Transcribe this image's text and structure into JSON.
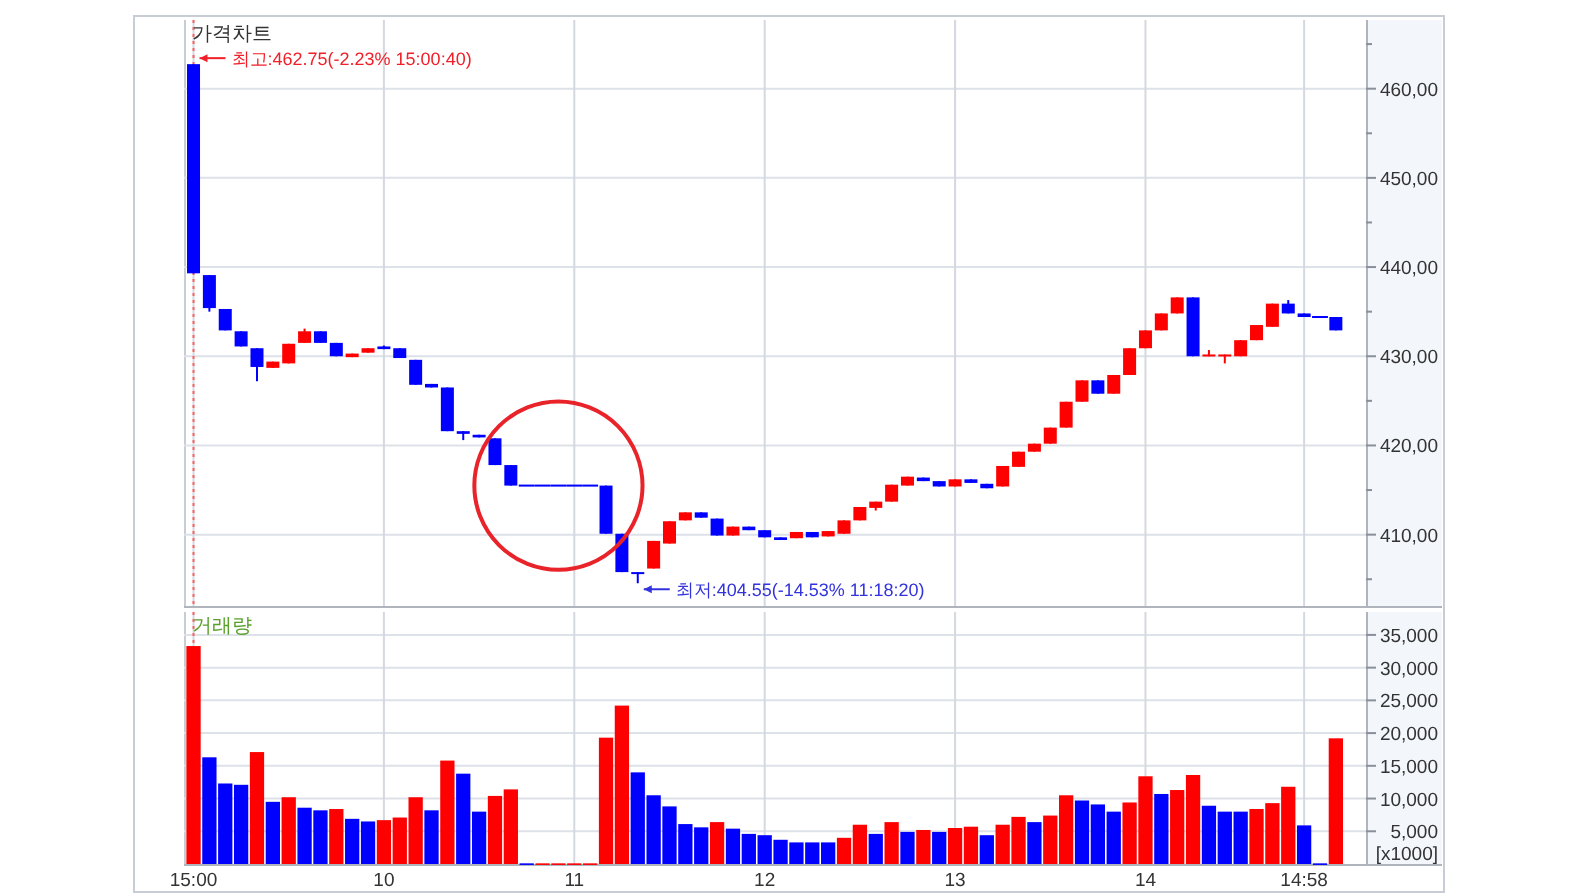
{
  "chart_data": [
    {
      "type": "candlestick",
      "title": "가격차트",
      "categories": [
        "15:00",
        null,
        null,
        null,
        null,
        null,
        null,
        null,
        null,
        null,
        null,
        null,
        "10",
        null,
        null,
        null,
        null,
        null,
        null,
        null,
        null,
        null,
        null,
        null,
        "11",
        null,
        null,
        null,
        null,
        null,
        null,
        null,
        null,
        null,
        null,
        null,
        "12",
        null,
        null,
        null,
        null,
        null,
        null,
        null,
        null,
        null,
        null,
        null,
        "13",
        null,
        null,
        null,
        null,
        null,
        null,
        null,
        null,
        null,
        null,
        null,
        "14",
        null,
        null,
        null,
        null,
        null,
        null,
        null,
        null,
        null,
        "14:58",
        null,
        null
      ],
      "ohlc": [
        [
          462.75,
          462.75,
          439.3,
          439.3
        ],
        [
          439.1,
          439.1,
          435.0,
          435.4
        ],
        [
          435.3,
          435.3,
          432.9,
          432.9
        ],
        [
          432.8,
          432.8,
          431.1,
          431.1
        ],
        [
          430.9,
          430.9,
          427.2,
          428.8
        ],
        [
          428.7,
          429.4,
          428.7,
          429.4
        ],
        [
          429.2,
          431.4,
          429.2,
          431.4
        ],
        [
          431.5,
          433.1,
          431.5,
          432.8
        ],
        [
          432.8,
          432.8,
          431.5,
          431.5
        ],
        [
          431.5,
          431.5,
          430.0,
          430.0
        ],
        [
          429.9,
          430.3,
          429.9,
          430.3
        ],
        [
          430.4,
          430.9,
          430.4,
          430.9
        ],
        [
          431.1,
          431.2,
          430.8,
          430.8
        ],
        [
          430.9,
          430.9,
          429.8,
          429.8
        ],
        [
          429.6,
          429.6,
          426.8,
          426.8
        ],
        [
          426.9,
          426.9,
          426.5,
          426.5
        ],
        [
          426.5,
          426.5,
          421.6,
          421.6
        ],
        [
          421.6,
          421.6,
          420.6,
          421.3
        ],
        [
          421.2,
          421.2,
          420.9,
          420.9
        ],
        [
          420.8,
          420.8,
          417.8,
          417.8
        ],
        [
          417.8,
          417.8,
          415.5,
          415.5
        ],
        [
          415.5,
          415.5,
          415.5,
          415.5
        ],
        [
          415.5,
          415.5,
          415.5,
          415.5
        ],
        [
          415.5,
          415.5,
          415.5,
          415.5
        ],
        [
          415.5,
          415.5,
          415.5,
          415.5
        ],
        [
          415.5,
          415.5,
          415.5,
          415.5
        ],
        [
          415.5,
          415.5,
          410.1,
          410.1
        ],
        [
          410.1,
          410.1,
          405.8,
          405.8
        ],
        [
          405.8,
          405.8,
          404.55,
          405.7
        ],
        [
          406.2,
          409.3,
          406.2,
          409.3
        ],
        [
          409.0,
          411.5,
          409.0,
          411.5
        ],
        [
          411.6,
          412.5,
          411.6,
          412.5
        ],
        [
          412.5,
          412.5,
          411.9,
          411.9
        ],
        [
          411.8,
          411.8,
          409.9,
          409.9
        ],
        [
          409.9,
          410.9,
          409.9,
          410.9
        ],
        [
          410.9,
          410.9,
          410.5,
          410.5
        ],
        [
          410.5,
          410.5,
          409.7,
          409.7
        ],
        [
          409.7,
          409.7,
          409.4,
          409.4
        ],
        [
          409.6,
          410.3,
          409.6,
          410.3
        ],
        [
          410.3,
          410.3,
          409.7,
          409.7
        ],
        [
          409.8,
          410.4,
          409.8,
          410.4
        ],
        [
          410.1,
          411.6,
          410.1,
          411.6
        ],
        [
          411.6,
          413.1,
          411.6,
          413.1
        ],
        [
          413.0,
          413.7,
          412.7,
          413.7
        ],
        [
          413.7,
          415.6,
          413.7,
          415.6
        ],
        [
          415.5,
          416.5,
          415.5,
          416.5
        ],
        [
          416.4,
          416.4,
          416.0,
          416.0
        ],
        [
          416.0,
          416.0,
          415.4,
          415.4
        ],
        [
          415.4,
          416.2,
          415.4,
          416.2
        ],
        [
          416.2,
          416.2,
          415.8,
          415.8
        ],
        [
          415.7,
          415.7,
          415.2,
          415.2
        ],
        [
          415.4,
          417.7,
          415.4,
          417.7
        ],
        [
          417.6,
          419.3,
          417.6,
          419.3
        ],
        [
          419.3,
          420.2,
          419.3,
          420.2
        ],
        [
          420.2,
          422.0,
          420.2,
          422.0
        ],
        [
          422.0,
          424.9,
          422.0,
          424.9
        ],
        [
          424.9,
          427.3,
          424.9,
          427.3
        ],
        [
          427.3,
          427.3,
          425.8,
          425.8
        ],
        [
          425.8,
          427.9,
          425.8,
          427.9
        ],
        [
          427.9,
          430.9,
          427.9,
          430.9
        ],
        [
          430.9,
          432.9,
          430.9,
          432.9
        ],
        [
          432.9,
          434.8,
          432.9,
          434.8
        ],
        [
          434.8,
          436.6,
          434.8,
          436.6
        ],
        [
          436.6,
          436.6,
          430.0,
          430.0
        ],
        [
          430.0,
          430.7,
          430.0,
          430.2
        ],
        [
          430.0,
          430.2,
          429.2,
          430.2
        ],
        [
          430.0,
          431.8,
          430.0,
          431.8
        ],
        [
          431.8,
          433.5,
          431.8,
          433.5
        ],
        [
          433.3,
          435.9,
          433.3,
          435.9
        ],
        [
          435.9,
          436.3,
          434.8,
          434.8
        ],
        [
          434.8,
          434.8,
          434.4,
          434.4
        ],
        [
          434.4,
          434.4,
          434.4,
          434.4
        ],
        [
          434.4,
          434.4,
          432.9,
          432.9
        ]
      ],
      "colors": [
        "#0000ff",
        "#0000ff",
        "#0000ff",
        "#0000ff",
        "#0000ff",
        "#ff0000",
        "#ff0000",
        "#ff0000",
        "#0000ff",
        "#0000ff",
        "#ff0000",
        "#ff0000",
        "#0000ff",
        "#0000ff",
        "#0000ff",
        "#0000ff",
        "#0000ff",
        "#0000ff",
        "#0000ff",
        "#0000ff",
        "#0000ff",
        "#0000ff",
        "#0000ff",
        "#0000ff",
        "#0000ff",
        "#0000ff",
        "#0000ff",
        "#0000ff",
        "#0000ff",
        "#ff0000",
        "#ff0000",
        "#ff0000",
        "#0000ff",
        "#0000ff",
        "#ff0000",
        "#0000ff",
        "#0000ff",
        "#0000ff",
        "#ff0000",
        "#0000ff",
        "#ff0000",
        "#ff0000",
        "#ff0000",
        "#ff0000",
        "#ff0000",
        "#ff0000",
        "#0000ff",
        "#0000ff",
        "#ff0000",
        "#0000ff",
        "#0000ff",
        "#ff0000",
        "#ff0000",
        "#ff0000",
        "#ff0000",
        "#ff0000",
        "#ff0000",
        "#0000ff",
        "#ff0000",
        "#ff0000",
        "#ff0000",
        "#ff0000",
        "#ff0000",
        "#0000ff",
        "#ff0000",
        "#ff0000",
        "#ff0000",
        "#ff0000",
        "#ff0000",
        "#0000ff",
        "#0000ff",
        "#0000ff",
        "#0000ff"
      ],
      "ylim": [
        402,
        467.7
      ],
      "yticks": [
        {
          "value": 405,
          "label": null
        },
        {
          "value": 410,
          "label": "410,00"
        },
        {
          "value": 415,
          "label": null
        },
        {
          "value": 420,
          "label": "420,00"
        },
        {
          "value": 425,
          "label": null
        },
        {
          "value": 430,
          "label": "430,00"
        },
        {
          "value": 435,
          "label": null
        },
        {
          "value": 440,
          "label": "440,00"
        },
        {
          "value": 445,
          "label": null
        },
        {
          "value": 450,
          "label": "450,00"
        },
        {
          "value": 455,
          "label": null
        },
        {
          "value": 460,
          "label": "460,00"
        },
        {
          "value": 465,
          "label": null
        }
      ],
      "grid": true,
      "tick_labels": "y",
      "ref_lines": [
        {
          "axis": "x",
          "value": "15:00",
          "color": "#ff6060",
          "line_style": "dotted"
        }
      ],
      "annotations": [
        {
          "text": "최고:462.75(-2.23% 15:00:40)",
          "x": "15:00",
          "y": 462.75
        },
        "최저:404.55(-14.53% 11:18:20)"
      ]
    },
    {
      "type": "bar",
      "title": "거래량",
      "ylabel": "[x1000]",
      "categories": [
        "15:00",
        null,
        null,
        null,
        null,
        null,
        null,
        null,
        null,
        null,
        null,
        null,
        "10",
        null,
        null,
        null,
        null,
        null,
        null,
        null,
        null,
        null,
        null,
        null,
        "11",
        null,
        null,
        null,
        null,
        null,
        null,
        null,
        null,
        null,
        null,
        null,
        "12",
        null,
        null,
        null,
        null,
        null,
        null,
        null,
        null,
        null,
        null,
        null,
        "13",
        null,
        null,
        null,
        null,
        null,
        null,
        null,
        null,
        null,
        null,
        null,
        "14",
        null,
        null,
        null,
        null,
        null,
        null,
        null,
        null,
        null,
        "14:58",
        null,
        null
      ],
      "values": [
        33300,
        16300,
        12300,
        12100,
        17100,
        9500,
        10200,
        8600,
        8200,
        8400,
        6900,
        6500,
        6700,
        7100,
        10200,
        8200,
        15800,
        13800,
        8000,
        10400,
        11400,
        100,
        100,
        100,
        100,
        100,
        19300,
        24200,
        14000,
        10500,
        8800,
        6100,
        5600,
        6400,
        5400,
        4600,
        4400,
        3700,
        3300,
        3300,
        3300,
        4000,
        6000,
        4600,
        6400,
        4900,
        5200,
        4900,
        5500,
        5700,
        4400,
        6000,
        7200,
        6400,
        7400,
        10500,
        9700,
        9100,
        8000,
        9400,
        13400,
        10700,
        11300,
        13600,
        8900,
        8000,
        8000,
        8400,
        9300,
        11800,
        5900,
        100,
        19200
      ],
      "colors": [
        "#ff0000",
        "#0000ff",
        "#0000ff",
        "#0000ff",
        "#ff0000",
        "#0000ff",
        "#ff0000",
        "#0000ff",
        "#0000ff",
        "#ff0000",
        "#0000ff",
        "#0000ff",
        "#ff0000",
        "#ff0000",
        "#ff0000",
        "#0000ff",
        "#ff0000",
        "#0000ff",
        "#0000ff",
        "#ff0000",
        "#ff0000",
        "#0000ff",
        "#ff0000",
        "#ff0000",
        "#ff0000",
        "#ff0000",
        "#ff0000",
        "#ff0000",
        "#0000ff",
        "#0000ff",
        "#0000ff",
        "#0000ff",
        "#0000ff",
        "#ff0000",
        "#0000ff",
        "#0000ff",
        "#0000ff",
        "#0000ff",
        "#0000ff",
        "#0000ff",
        "#0000ff",
        "#ff0000",
        "#ff0000",
        "#0000ff",
        "#ff0000",
        "#0000ff",
        "#ff0000",
        "#0000ff",
        "#ff0000",
        "#ff0000",
        "#0000ff",
        "#ff0000",
        "#ff0000",
        "#0000ff",
        "#ff0000",
        "#ff0000",
        "#0000ff",
        "#0000ff",
        "#0000ff",
        "#ff0000",
        "#ff0000",
        "#0000ff",
        "#ff0000",
        "#ff0000",
        "#0000ff",
        "#0000ff",
        "#0000ff",
        "#ff0000",
        "#ff0000",
        "#ff0000",
        "#0000ff",
        "#0000ff",
        "#ff0000"
      ],
      "ylim": [
        0,
        38500
      ],
      "yticks": [
        {
          "value": 5000,
          "label": "5,000"
        },
        {
          "value": 10000,
          "label": "10,000"
        },
        {
          "value": 15000,
          "label": "15,000"
        },
        {
          "value": 20000,
          "label": "20,000"
        },
        {
          "value": 25000,
          "label": "25,000"
        },
        {
          "value": 30000,
          "label": "30,000"
        },
        {
          "value": 35000,
          "label": "35,000"
        }
      ],
      "grid": true,
      "ref_lines": [
        {
          "axis": "x",
          "value": "15:00",
          "color": "#ff6060",
          "line_style": "dotted"
        }
      ]
    }
  ]
}
